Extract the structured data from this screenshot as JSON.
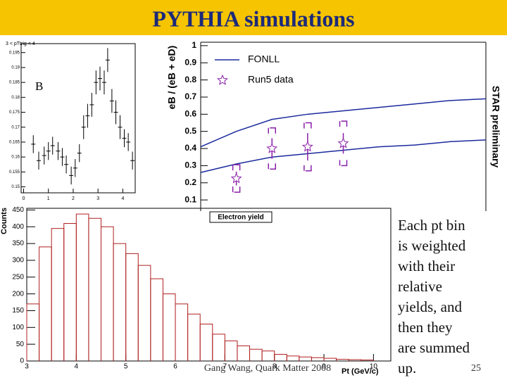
{
  "slide": {
    "title": "PYTHIA simulations",
    "text_lines": [
      "Each pt bin",
      "is weighted",
      "with their",
      "relative",
      "yields, and",
      "then they",
      "are summed",
      "up."
    ],
    "footer": "Gang Wang, Quark Matter 2008",
    "page": "25"
  },
  "chart_data": [
    {
      "type": "scatter",
      "title": "3 < pTtrig < 4",
      "label": "B",
      "color": "#000000",
      "x": [
        0.39,
        0.61,
        0.83,
        1.0,
        1.17,
        1.39,
        1.56,
        1.72,
        1.92,
        2.08,
        2.25,
        2.42,
        2.58,
        2.75,
        2.92,
        3.08,
        3.25,
        3.39,
        3.56,
        3.72,
        3.89,
        4.06,
        4.22,
        4.39
      ],
      "values": [
        0.1643,
        0.1588,
        0.1605,
        0.162,
        0.1638,
        0.162,
        0.16,
        0.1575,
        0.1538,
        0.1563,
        0.1613,
        0.17,
        0.1738,
        0.1775,
        0.185,
        0.1863,
        0.185,
        0.1925,
        0.1788,
        0.175,
        0.17,
        0.1663,
        0.165,
        0.1588
      ],
      "errors": [
        0.003,
        0.003,
        0.003,
        0.003,
        0.003,
        0.003,
        0.003,
        0.003,
        0.003,
        0.003,
        0.003,
        0.004,
        0.004,
        0.004,
        0.004,
        0.004,
        0.004,
        0.004,
        0.004,
        0.004,
        0.004,
        0.003,
        0.003,
        0.003
      ],
      "xlim": [
        -0.1,
        4.5
      ],
      "xticks": [
        0,
        1,
        2,
        3,
        4
      ],
      "ylim": [
        0.148,
        0.198
      ],
      "yticks": [
        0.15,
        0.155,
        0.16,
        0.165,
        0.17,
        0.175,
        0.18,
        0.185,
        0.19,
        0.195
      ]
    },
    {
      "type": "ratio",
      "y_label": "eB / (eB + eD)",
      "annotation": "STAR preliminary",
      "xlim": [
        2,
        10
      ],
      "ylim": [
        0.08,
        1.02
      ],
      "yticks": [
        0.1,
        0.2,
        0.3,
        0.4,
        0.5,
        0.6,
        0.7,
        0.8,
        0.9,
        1
      ],
      "band": {
        "name": "FONLL",
        "color": "#1a2a9c",
        "x": [
          2,
          3,
          4,
          5,
          6,
          7,
          8,
          9,
          10
        ],
        "upper": [
          0.41,
          0.5,
          0.57,
          0.6,
          0.62,
          0.64,
          0.66,
          0.68,
          0.69
        ],
        "lower": [
          0.26,
          0.31,
          0.35,
          0.37,
          0.39,
          0.41,
          0.42,
          0.44,
          0.45
        ]
      },
      "points": {
        "name": "Run5 data",
        "color": "#8a1fa8",
        "x": [
          3,
          4,
          5,
          6
        ],
        "values": [
          0.225,
          0.4,
          0.41,
          0.43
        ],
        "errors": [
          0.04,
          0.06,
          0.08,
          0.06
        ],
        "sys": [
          0.08,
          0.12,
          0.14,
          0.13
        ]
      },
      "legend": "top-left"
    },
    {
      "type": "histogram",
      "title": "Electron yield",
      "x_label": "Pt (GeV/c)",
      "y_label": "Counts",
      "color": "#b02020",
      "bins": [
        3,
        3.25,
        3.5,
        3.75,
        4,
        4.25,
        4.5,
        4.75,
        5,
        5.25,
        5.5,
        5.75,
        6,
        6.25,
        6.5,
        6.75,
        7,
        7.25,
        7.5,
        7.75,
        8,
        8.25,
        8.5,
        8.75,
        9,
        9.25,
        9.5,
        9.75,
        10
      ],
      "values": [
        170,
        340,
        395,
        410,
        438,
        425,
        400,
        350,
        320,
        285,
        245,
        200,
        170,
        140,
        110,
        80,
        60,
        45,
        35,
        30,
        20,
        15,
        12,
        10,
        8,
        5,
        4,
        3
      ],
      "xlim": [
        3,
        10.35
      ],
      "xticks": [
        3,
        4,
        5,
        6,
        7,
        8,
        9,
        10
      ],
      "ylim": [
        0,
        455
      ],
      "yticks": [
        0,
        50,
        100,
        150,
        200,
        250,
        300,
        350,
        400,
        450
      ]
    }
  ]
}
